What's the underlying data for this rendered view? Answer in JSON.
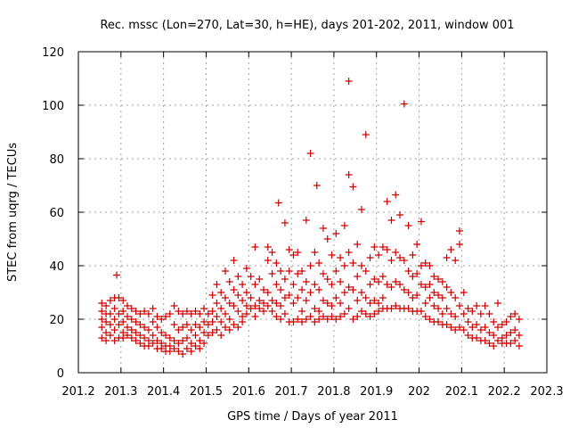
{
  "chart_data": {
    "type": "scatter",
    "title": "Rec. mssc (Lon=270, Lat=30, h=HE), days 201-202, 2011, window 001",
    "xlabel": "GPS time / Days of year 2011",
    "ylabel": "STEC from uqrg / TECUs",
    "xlim": [
      201.2,
      202.3
    ],
    "ylim": [
      0,
      120
    ],
    "grid": true,
    "marker": "+",
    "marker_color": "#cc0000",
    "x_ticks": [
      {
        "value": 201.2,
        "label": "201.2"
      },
      {
        "value": 201.3,
        "label": "201.3"
      },
      {
        "value": 201.4,
        "label": "201.4"
      },
      {
        "value": 201.5,
        "label": "201.5"
      },
      {
        "value": 201.6,
        "label": "201.6"
      },
      {
        "value": 201.7,
        "label": "201.7"
      },
      {
        "value": 201.8,
        "label": "201.8"
      },
      {
        "value": 201.9,
        "label": "201.9"
      },
      {
        "value": 202.0,
        "label": "202"
      },
      {
        "value": 202.1,
        "label": "202.1"
      },
      {
        "value": 202.2,
        "label": "202.2"
      },
      {
        "value": 202.3,
        "label": "202.3"
      }
    ],
    "y_ticks": [
      {
        "value": 0,
        "label": "0"
      },
      {
        "value": 20,
        "label": "20"
      },
      {
        "value": 40,
        "label": "40"
      },
      {
        "value": 60,
        "label": "60"
      },
      {
        "value": 80,
        "label": "80"
      },
      {
        "value": 100,
        "label": "100"
      },
      {
        "value": 120,
        "label": "120"
      }
    ],
    "points": [
      [
        201.255,
        26
      ],
      [
        201.255,
        23
      ],
      [
        201.255,
        20
      ],
      [
        201.255,
        17
      ],
      [
        201.255,
        13
      ],
      [
        201.265,
        25
      ],
      [
        201.265,
        22
      ],
      [
        201.265,
        19
      ],
      [
        201.265,
        15
      ],
      [
        201.265,
        12
      ],
      [
        201.275,
        27
      ],
      [
        201.275,
        22
      ],
      [
        201.275,
        18
      ],
      [
        201.275,
        14
      ],
      [
        201.285,
        28
      ],
      [
        201.285,
        24
      ],
      [
        201.285,
        20
      ],
      [
        201.285,
        16
      ],
      [
        201.285,
        12
      ],
      [
        201.29,
        36.5
      ],
      [
        201.295,
        28
      ],
      [
        201.295,
        22
      ],
      [
        201.295,
        18
      ],
      [
        201.295,
        13
      ],
      [
        201.305,
        27
      ],
      [
        201.305,
        23
      ],
      [
        201.305,
        19
      ],
      [
        201.305,
        15
      ],
      [
        201.305,
        13
      ],
      [
        201.315,
        25
      ],
      [
        201.315,
        21
      ],
      [
        201.315,
        17
      ],
      [
        201.315,
        14
      ],
      [
        201.325,
        24
      ],
      [
        201.325,
        20
      ],
      [
        201.325,
        16
      ],
      [
        201.325,
        13
      ],
      [
        201.335,
        23
      ],
      [
        201.335,
        19
      ],
      [
        201.335,
        15
      ],
      [
        201.335,
        12
      ],
      [
        201.345,
        22
      ],
      [
        201.345,
        18
      ],
      [
        201.345,
        14
      ],
      [
        201.345,
        11
      ],
      [
        201.355,
        23
      ],
      [
        201.355,
        17
      ],
      [
        201.355,
        13
      ],
      [
        201.355,
        10
      ],
      [
        201.365,
        22
      ],
      [
        201.365,
        16
      ],
      [
        201.365,
        12
      ],
      [
        201.365,
        10
      ],
      [
        201.375,
        24
      ],
      [
        201.375,
        19
      ],
      [
        201.375,
        14
      ],
      [
        201.375,
        11
      ],
      [
        201.385,
        21
      ],
      [
        201.385,
        17
      ],
      [
        201.385,
        12
      ],
      [
        201.385,
        9
      ],
      [
        201.395,
        20
      ],
      [
        201.395,
        15
      ],
      [
        201.395,
        11
      ],
      [
        201.395,
        9
      ],
      [
        201.405,
        21
      ],
      [
        201.405,
        14
      ],
      [
        201.405,
        10
      ],
      [
        201.405,
        8
      ],
      [
        201.415,
        22
      ],
      [
        201.415,
        13
      ],
      [
        201.415,
        10
      ],
      [
        201.415,
        8
      ],
      [
        201.425,
        25
      ],
      [
        201.425,
        18
      ],
      [
        201.425,
        12
      ],
      [
        201.425,
        9
      ],
      [
        201.435,
        23
      ],
      [
        201.435,
        16
      ],
      [
        201.435,
        11
      ],
      [
        201.435,
        8
      ],
      [
        201.445,
        22
      ],
      [
        201.445,
        17
      ],
      [
        201.445,
        12
      ],
      [
        201.445,
        7
      ],
      [
        201.455,
        23
      ],
      [
        201.455,
        18
      ],
      [
        201.455,
        13
      ],
      [
        201.455,
        9
      ],
      [
        201.465,
        22
      ],
      [
        201.465,
        16
      ],
      [
        201.465,
        11
      ],
      [
        201.465,
        8
      ],
      [
        201.475,
        23
      ],
      [
        201.475,
        18
      ],
      [
        201.475,
        14
      ],
      [
        201.475,
        10
      ],
      [
        201.485,
        22
      ],
      [
        201.485,
        17
      ],
      [
        201.485,
        12
      ],
      [
        201.485,
        9
      ],
      [
        201.495,
        24
      ],
      [
        201.495,
        19
      ],
      [
        201.495,
        15
      ],
      [
        201.495,
        11
      ],
      [
        201.505,
        22
      ],
      [
        201.505,
        18
      ],
      [
        201.505,
        14
      ],
      [
        201.515,
        29
      ],
      [
        201.515,
        23
      ],
      [
        201.515,
        19
      ],
      [
        201.515,
        15
      ],
      [
        201.525,
        33
      ],
      [
        201.525,
        26
      ],
      [
        201.525,
        21
      ],
      [
        201.525,
        16
      ],
      [
        201.535,
        30
      ],
      [
        201.535,
        24
      ],
      [
        201.535,
        19
      ],
      [
        201.535,
        14
      ],
      [
        201.545,
        38
      ],
      [
        201.545,
        28
      ],
      [
        201.545,
        22
      ],
      [
        201.545,
        17
      ],
      [
        201.555,
        34
      ],
      [
        201.555,
        26
      ],
      [
        201.555,
        20
      ],
      [
        201.555,
        16
      ],
      [
        201.565,
        42
      ],
      [
        201.565,
        31
      ],
      [
        201.565,
        25
      ],
      [
        201.565,
        18
      ],
      [
        201.575,
        36
      ],
      [
        201.575,
        29
      ],
      [
        201.575,
        23
      ],
      [
        201.575,
        17
      ],
      [
        201.585,
        33
      ],
      [
        201.585,
        27
      ],
      [
        201.585,
        21
      ],
      [
        201.585,
        19
      ],
      [
        201.595,
        39
      ],
      [
        201.595,
        30
      ],
      [
        201.595,
        25
      ],
      [
        201.595,
        22
      ],
      [
        201.605,
        36
      ],
      [
        201.605,
        28
      ],
      [
        201.605,
        24
      ],
      [
        201.615,
        47
      ],
      [
        201.615,
        33
      ],
      [
        201.615,
        25
      ],
      [
        201.615,
        21
      ],
      [
        201.625,
        35
      ],
      [
        201.625,
        27
      ],
      [
        201.625,
        24
      ],
      [
        201.635,
        31
      ],
      [
        201.635,
        26
      ],
      [
        201.635,
        23
      ],
      [
        201.645,
        47
      ],
      [
        201.645,
        42
      ],
      [
        201.645,
        30
      ],
      [
        201.645,
        25
      ],
      [
        201.655,
        45
      ],
      [
        201.655,
        37
      ],
      [
        201.655,
        27
      ],
      [
        201.655,
        23
      ],
      [
        201.665,
        41
      ],
      [
        201.665,
        33
      ],
      [
        201.665,
        26
      ],
      [
        201.665,
        21
      ],
      [
        201.67,
        63.5
      ],
      [
        201.675,
        38
      ],
      [
        201.675,
        31
      ],
      [
        201.675,
        25
      ],
      [
        201.675,
        20
      ],
      [
        201.685,
        56
      ],
      [
        201.685,
        35
      ],
      [
        201.685,
        28
      ],
      [
        201.685,
        22
      ],
      [
        201.695,
        46
      ],
      [
        201.695,
        38
      ],
      [
        201.695,
        29
      ],
      [
        201.695,
        19
      ],
      [
        201.705,
        44
      ],
      [
        201.705,
        33
      ],
      [
        201.705,
        26
      ],
      [
        201.705,
        19
      ],
      [
        201.715,
        45
      ],
      [
        201.715,
        37
      ],
      [
        201.715,
        28
      ],
      [
        201.715,
        20
      ],
      [
        201.725,
        38
      ],
      [
        201.725,
        31
      ],
      [
        201.725,
        23
      ],
      [
        201.725,
        19
      ],
      [
        201.735,
        57
      ],
      [
        201.735,
        34
      ],
      [
        201.735,
        27
      ],
      [
        201.735,
        20
      ],
      [
        201.745,
        82
      ],
      [
        201.745,
        40
      ],
      [
        201.745,
        30
      ],
      [
        201.745,
        21
      ],
      [
        201.755,
        45
      ],
      [
        201.755,
        33
      ],
      [
        201.755,
        24
      ],
      [
        201.755,
        19
      ],
      [
        201.76,
        70
      ],
      [
        201.765,
        41
      ],
      [
        201.765,
        31
      ],
      [
        201.765,
        23
      ],
      [
        201.765,
        20
      ],
      [
        201.775,
        54
      ],
      [
        201.775,
        37
      ],
      [
        201.775,
        27
      ],
      [
        201.775,
        21
      ],
      [
        201.785,
        50
      ],
      [
        201.785,
        35
      ],
      [
        201.785,
        26
      ],
      [
        201.785,
        20
      ],
      [
        201.795,
        44
      ],
      [
        201.795,
        33
      ],
      [
        201.795,
        25
      ],
      [
        201.795,
        21
      ],
      [
        201.805,
        52
      ],
      [
        201.805,
        38
      ],
      [
        201.805,
        28
      ],
      [
        201.805,
        20
      ],
      [
        201.815,
        43
      ],
      [
        201.815,
        34
      ],
      [
        201.815,
        26
      ],
      [
        201.815,
        21
      ],
      [
        201.825,
        55
      ],
      [
        201.825,
        40
      ],
      [
        201.825,
        30
      ],
      [
        201.825,
        22
      ],
      [
        201.835,
        109
      ],
      [
        201.835,
        74
      ],
      [
        201.835,
        45
      ],
      [
        201.835,
        32
      ],
      [
        201.835,
        24
      ],
      [
        201.845,
        69.5
      ],
      [
        201.845,
        41
      ],
      [
        201.845,
        31
      ],
      [
        201.845,
        20
      ],
      [
        201.855,
        48
      ],
      [
        201.855,
        36
      ],
      [
        201.855,
        27
      ],
      [
        201.855,
        21
      ],
      [
        201.865,
        61
      ],
      [
        201.865,
        40
      ],
      [
        201.865,
        30
      ],
      [
        201.865,
        23
      ],
      [
        201.875,
        89
      ],
      [
        201.875,
        38
      ],
      [
        201.875,
        28
      ],
      [
        201.875,
        22
      ],
      [
        201.885,
        43
      ],
      [
        201.885,
        33
      ],
      [
        201.885,
        26
      ],
      [
        201.885,
        21
      ],
      [
        201.895,
        47
      ],
      [
        201.895,
        35
      ],
      [
        201.895,
        27
      ],
      [
        201.895,
        22
      ],
      [
        201.905,
        44
      ],
      [
        201.905,
        34
      ],
      [
        201.905,
        26
      ],
      [
        201.905,
        23
      ],
      [
        201.915,
        47
      ],
      [
        201.915,
        36
      ],
      [
        201.915,
        28
      ],
      [
        201.915,
        24
      ],
      [
        201.925,
        64
      ],
      [
        201.925,
        46
      ],
      [
        201.925,
        33
      ],
      [
        201.925,
        24
      ],
      [
        201.935,
        57
      ],
      [
        201.935,
        42
      ],
      [
        201.935,
        32
      ],
      [
        201.935,
        24
      ],
      [
        201.945,
        66.5
      ],
      [
        201.945,
        45
      ],
      [
        201.945,
        34
      ],
      [
        201.945,
        25
      ],
      [
        201.955,
        59
      ],
      [
        201.955,
        43
      ],
      [
        201.955,
        33
      ],
      [
        201.955,
        24
      ],
      [
        201.965,
        100.5
      ],
      [
        201.965,
        42
      ],
      [
        201.965,
        31
      ],
      [
        201.965,
        24
      ],
      [
        201.975,
        55
      ],
      [
        201.975,
        38
      ],
      [
        201.975,
        30
      ],
      [
        201.975,
        24
      ],
      [
        201.985,
        44
      ],
      [
        201.985,
        36
      ],
      [
        201.985,
        28
      ],
      [
        201.985,
        23
      ],
      [
        201.995,
        48
      ],
      [
        201.995,
        37
      ],
      [
        201.995,
        29
      ],
      [
        201.995,
        23
      ],
      [
        202.005,
        56.5
      ],
      [
        202.005,
        40
      ],
      [
        202.005,
        33
      ],
      [
        202.005,
        23
      ],
      [
        202.015,
        41
      ],
      [
        202.015,
        32
      ],
      [
        202.015,
        26
      ],
      [
        202.015,
        21
      ],
      [
        202.025,
        40
      ],
      [
        202.025,
        33
      ],
      [
        202.025,
        28
      ],
      [
        202.025,
        20
      ],
      [
        202.035,
        36
      ],
      [
        202.035,
        30
      ],
      [
        202.035,
        25
      ],
      [
        202.035,
        19
      ],
      [
        202.045,
        35
      ],
      [
        202.045,
        29
      ],
      [
        202.045,
        24
      ],
      [
        202.045,
        19
      ],
      [
        202.055,
        34
      ],
      [
        202.055,
        28
      ],
      [
        202.055,
        22
      ],
      [
        202.055,
        18
      ],
      [
        202.065,
        43
      ],
      [
        202.065,
        32
      ],
      [
        202.065,
        24
      ],
      [
        202.065,
        18
      ],
      [
        202.075,
        46
      ],
      [
        202.075,
        30
      ],
      [
        202.075,
        22
      ],
      [
        202.075,
        17
      ],
      [
        202.085,
        42
      ],
      [
        202.085,
        28
      ],
      [
        202.085,
        21
      ],
      [
        202.085,
        16
      ],
      [
        202.095,
        53
      ],
      [
        202.095,
        48
      ],
      [
        202.095,
        25
      ],
      [
        202.095,
        17
      ],
      [
        202.105,
        30
      ],
      [
        202.105,
        22
      ],
      [
        202.105,
        16
      ],
      [
        202.115,
        24
      ],
      [
        202.115,
        19
      ],
      [
        202.115,
        14
      ],
      [
        202.125,
        23
      ],
      [
        202.125,
        17
      ],
      [
        202.125,
        13
      ],
      [
        202.135,
        25
      ],
      [
        202.135,
        18
      ],
      [
        202.135,
        13
      ],
      [
        202.145,
        22
      ],
      [
        202.145,
        16
      ],
      [
        202.145,
        12
      ],
      [
        202.155,
        25
      ],
      [
        202.155,
        17
      ],
      [
        202.155,
        12
      ],
      [
        202.165,
        22
      ],
      [
        202.165,
        15
      ],
      [
        202.165,
        11
      ],
      [
        202.175,
        19
      ],
      [
        202.175,
        14
      ],
      [
        202.175,
        10
      ],
      [
        202.185,
        26
      ],
      [
        202.185,
        17
      ],
      [
        202.185,
        12
      ],
      [
        202.195,
        18
      ],
      [
        202.195,
        13
      ],
      [
        202.195,
        11
      ],
      [
        202.205,
        19
      ],
      [
        202.205,
        14
      ],
      [
        202.205,
        11
      ],
      [
        202.215,
        21
      ],
      [
        202.215,
        15
      ],
      [
        202.215,
        11
      ],
      [
        202.225,
        22
      ],
      [
        202.225,
        16
      ],
      [
        202.225,
        12
      ],
      [
        202.235,
        20
      ],
      [
        202.235,
        14
      ],
      [
        202.235,
        10
      ]
    ]
  }
}
